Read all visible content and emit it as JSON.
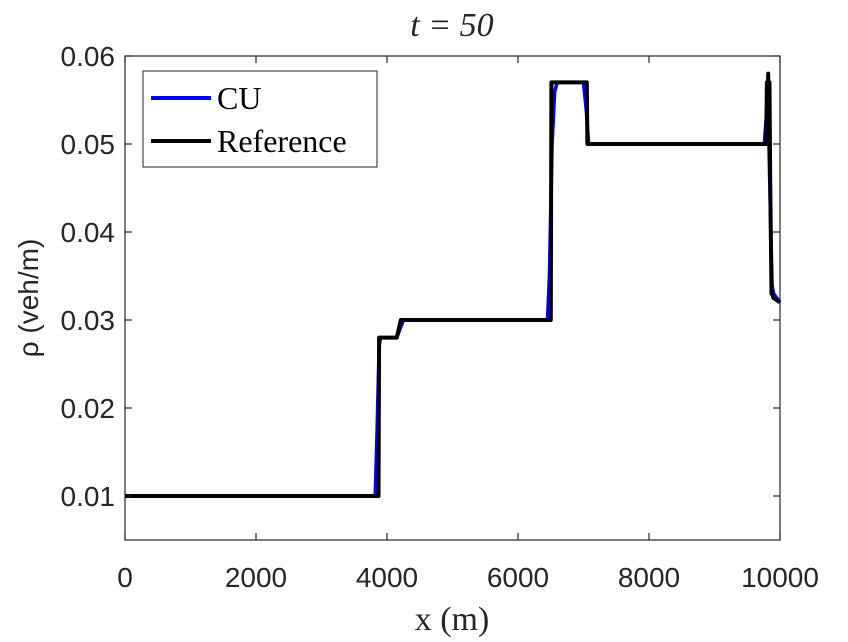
{
  "chart_data": {
    "type": "line",
    "title": "t = 50",
    "xlabel": "x (m)",
    "ylabel": "ρ (veh/m)",
    "xlim": [
      0,
      10000
    ],
    "ylim": [
      0.005,
      0.06
    ],
    "xticks": [
      0,
      2000,
      4000,
      6000,
      8000,
      10000
    ],
    "xtick_labels": [
      "0",
      "2000",
      "4000",
      "6000",
      "8000",
      "10000"
    ],
    "yticks": [
      0.01,
      0.02,
      0.03,
      0.04,
      0.05,
      0.06
    ],
    "ytick_labels": [
      "0.01",
      "0.02",
      "0.03",
      "0.04",
      "0.05",
      "0.06"
    ],
    "grid": false,
    "legend_position": "top-left",
    "series": [
      {
        "name": "CU",
        "color": "#0000ff",
        "x": [
          0,
          3820,
          3850,
          3880,
          3900,
          4150,
          4250,
          6450,
          6480,
          6520,
          6560,
          6600,
          7000,
          7040,
          7080,
          7120,
          9760,
          9790,
          9810,
          9830,
          9860,
          9880,
          9900,
          10000
        ],
        "y": [
          0.01,
          0.01,
          0.018,
          0.027,
          0.028,
          0.028,
          0.03,
          0.03,
          0.035,
          0.05,
          0.056,
          0.057,
          0.057,
          0.054,
          0.05,
          0.05,
          0.05,
          0.053,
          0.057,
          0.05,
          0.04,
          0.034,
          0.033,
          0.032
        ]
      },
      {
        "name": "Reference",
        "color": "#000000",
        "x": [
          0,
          3870,
          3880,
          4150,
          4180,
          4210,
          6500,
          6510,
          6520,
          7050,
          7060,
          7070,
          9780,
          9790,
          9800,
          9810,
          9820,
          9830,
          9840,
          9850,
          9860,
          9870,
          9880,
          9900,
          10000
        ],
        "y": [
          0.01,
          0.01,
          0.028,
          0.028,
          0.029,
          0.03,
          0.03,
          0.057,
          0.057,
          0.057,
          0.05,
          0.05,
          0.05,
          0.05,
          0.057,
          0.052,
          0.058,
          0.05,
          0.057,
          0.046,
          0.04,
          0.033,
          0.033,
          0.0325,
          0.032
        ]
      }
    ]
  }
}
